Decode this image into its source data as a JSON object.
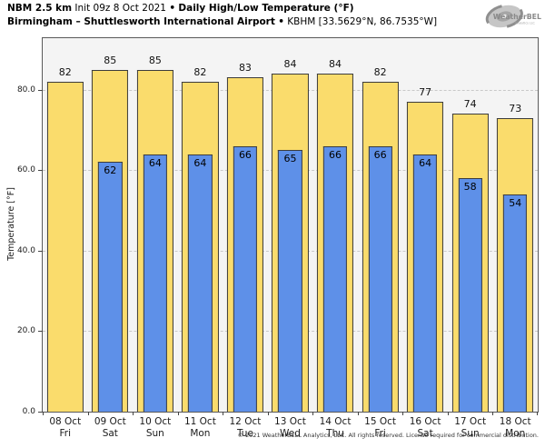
{
  "header": {
    "line1": {
      "bold1": "NBM 2.5 km",
      "regular": "Init 09z 8 Oct 2021",
      "sep": "•",
      "bold2": "Daily High/Low Temperature (°F)"
    },
    "line2": {
      "bold": "Birmingham – Shuttlesworth International Airport",
      "sep": "•",
      "regular": "KBHM [33.5629°N, 86.7535°W]"
    }
  },
  "logo": {
    "brand": "WeatherBELL",
    "subtext": "Analytics LLC",
    "icon": "hurricane-swirl-icon"
  },
  "footer": {
    "copyright": "© 2021 WeatherBELL Analytics, LLC. All rights reserved. License required for commercial distribution."
  },
  "colors": {
    "high_bar": "#FADC6C",
    "low_bar": "#5E90E8",
    "bar_border": "#3C3C3C",
    "plot_bg": "#F4F4F4",
    "plot_border": "#5A5A5A",
    "gridline": "#C9C9C9",
    "logo_gray": "#8F8F8F"
  },
  "chart_data": {
    "type": "bar",
    "title": "NBM 2.5 km Init 09z 8 Oct 2021 • Daily High/Low Temperature (°F)",
    "subtitle": "Birmingham – Shuttlesworth International Airport • KBHM [33.5629°N, 86.7535°W]",
    "xlabel": "",
    "ylabel": "Temperature [°F]",
    "ylim": [
      0,
      92.8
    ],
    "yticks": [
      0,
      20,
      40,
      60,
      80
    ],
    "ytick_labels": [
      "0.0",
      "20.0",
      "40.0",
      "60.0",
      "80.0"
    ],
    "grid": true,
    "legend_position": "none",
    "categories": [
      {
        "date": "08 Oct",
        "day": "Fri"
      },
      {
        "date": "09 Oct",
        "day": "Sat"
      },
      {
        "date": "10 Oct",
        "day": "Sun"
      },
      {
        "date": "11 Oct",
        "day": "Mon"
      },
      {
        "date": "12 Oct",
        "day": "Tue"
      },
      {
        "date": "13 Oct",
        "day": "Wed"
      },
      {
        "date": "14 Oct",
        "day": "Thu"
      },
      {
        "date": "15 Oct",
        "day": "Fri"
      },
      {
        "date": "16 Oct",
        "day": "Sat"
      },
      {
        "date": "17 Oct",
        "day": "Sun"
      },
      {
        "date": "18 Oct",
        "day": "Mon"
      }
    ],
    "series": [
      {
        "name": "Daily High",
        "color": "#FADC6C",
        "values": [
          82,
          85,
          85,
          82,
          83,
          84,
          84,
          82,
          77,
          74,
          73
        ]
      },
      {
        "name": "Daily Low",
        "color": "#5E90E8",
        "values": [
          null,
          62,
          64,
          64,
          66,
          65,
          66,
          66,
          64,
          58,
          54
        ]
      }
    ]
  }
}
